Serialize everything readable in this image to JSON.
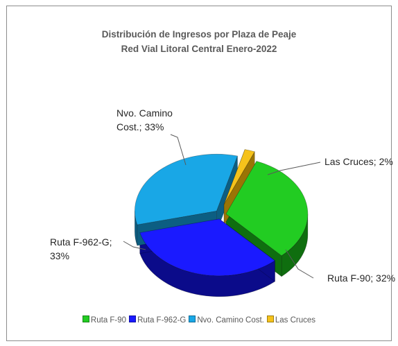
{
  "chart_data": {
    "type": "pie",
    "title": "Distribución de Ingresos por Plaza de Peaje",
    "subtitle": "Red Vial Litoral Central Enero-2022",
    "three_d": true,
    "legend_position": "bottom",
    "slices": [
      {
        "name": "Ruta F-90",
        "value": 32,
        "label": "Ruta F-90; 32%",
        "color": "#22cc22",
        "side": "#0f6e0f"
      },
      {
        "name": "Ruta F-962-G",
        "value": 33,
        "label_lines": [
          "Ruta F-962-G;",
          "33%"
        ],
        "color": "#1a1aff",
        "side": "#0b0b8a"
      },
      {
        "name": "Nvo. Camino Cost.",
        "value": 33,
        "label_lines": [
          "Nvo. Camino",
          "Cost.; 33%"
        ],
        "color": "#19a7e6",
        "side": "#0c5e82"
      },
      {
        "name": "Las Cruces",
        "value": 2,
        "label": "Las Cruces; 2%",
        "color": "#f5c21b",
        "side": "#9a7405"
      }
    ]
  }
}
